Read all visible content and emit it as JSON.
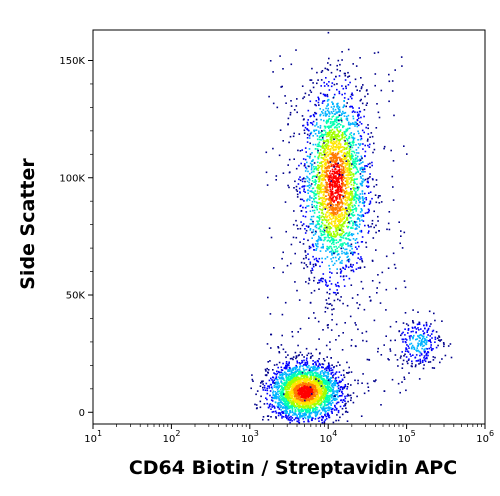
{
  "chart_data": {
    "type": "scatter",
    "subtype": "flow-cytometry-density-dot-plot",
    "title": "",
    "xlabel": "CD64 Biotin / Streptavidin APC",
    "ylabel": "Side Scatter",
    "x_scale": "log",
    "x_range": [
      10,
      1000000
    ],
    "y_range": [
      -5000,
      163000
    ],
    "x_ticks": [
      {
        "value": 10,
        "base": "10",
        "exp": "1"
      },
      {
        "value": 100,
        "base": "10",
        "exp": "2"
      },
      {
        "value": 1000,
        "base": "10",
        "exp": "3"
      },
      {
        "value": 10000,
        "base": "10",
        "exp": "4"
      },
      {
        "value": 100000,
        "base": "10",
        "exp": "5"
      },
      {
        "value": 1000000,
        "base": "10",
        "exp": "6"
      }
    ],
    "y_ticks": [
      {
        "value": 0,
        "label": "0"
      },
      {
        "value": 50000,
        "label": "50K"
      },
      {
        "value": 100000,
        "label": "100K"
      },
      {
        "value": 150000,
        "label": "150K"
      }
    ],
    "grid": false,
    "legend": "none",
    "color_scale": [
      "#00008b",
      "#0000ff",
      "#00b4ff",
      "#00ffb0",
      "#a0ff00",
      "#ffe600",
      "#ff7a00",
      "#ff0000"
    ],
    "populations": [
      {
        "name": "",
        "center_x": 12000,
        "center_y": 98000,
        "relative_density": "high",
        "x_range": [
          4000,
          40000
        ],
        "y_range": [
          62000,
          160000
        ]
      },
      {
        "name": "",
        "center_x": 5000,
        "center_y": 9000,
        "relative_density": "high",
        "x_range": [
          1500,
          20000
        ],
        "y_range": [
          0,
          30000
        ]
      },
      {
        "name": "",
        "center_x": 140000,
        "center_y": 30000,
        "relative_density": "low",
        "x_range": [
          60000,
          350000
        ],
        "y_range": [
          18000,
          45000
        ]
      }
    ]
  }
}
